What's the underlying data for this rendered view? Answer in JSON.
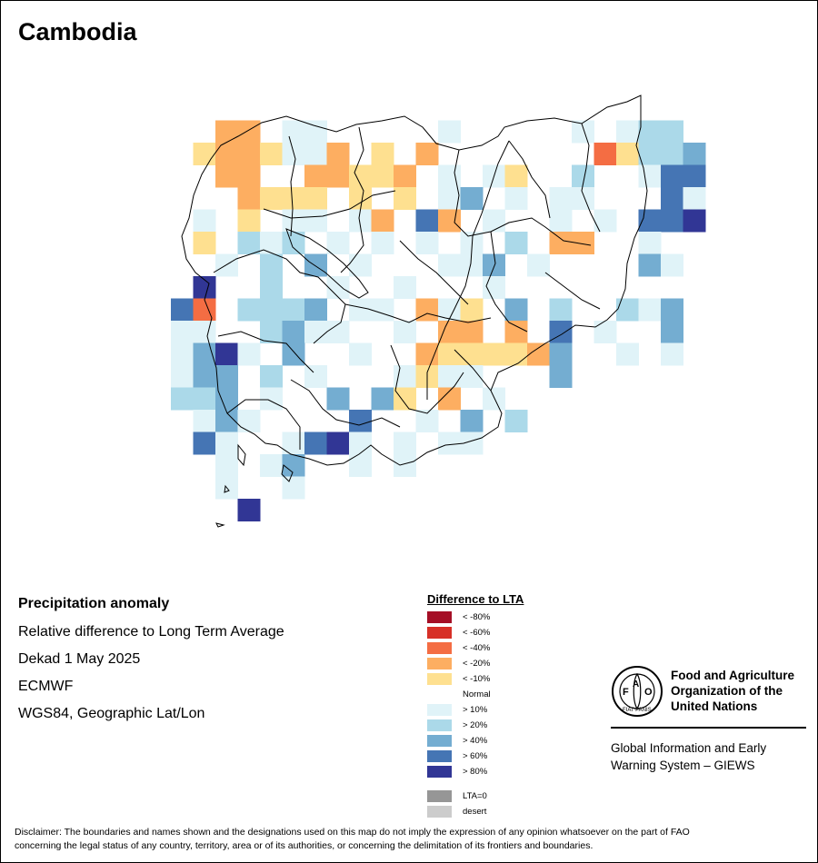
{
  "title": "Cambodia",
  "info": {
    "title": "Precipitation anomaly",
    "line1": "Relative difference to Long Term Average",
    "line2": "Dekad 1 May 2025",
    "line3": "ECMWF",
    "line4": "WGS84, Geographic Lat/Lon"
  },
  "legend": {
    "title": "Difference to LTA",
    "items": [
      {
        "label": "< -80%",
        "color": "#a50f26"
      },
      {
        "label": "< -60%",
        "color": "#d73027"
      },
      {
        "label": "< -40%",
        "color": "#f46d43"
      },
      {
        "label": "< -20%",
        "color": "#fdae61"
      },
      {
        "label": "< -10%",
        "color": "#fee090"
      },
      {
        "label": "Normal",
        "color": "#ffffff"
      },
      {
        "label": "> 10%",
        "color": "#e0f3f8"
      },
      {
        "label": "> 20%",
        "color": "#abd9e9"
      },
      {
        "label": "> 40%",
        "color": "#74add1"
      },
      {
        "label": "> 60%",
        "color": "#4575b4"
      },
      {
        "label": "> 80%",
        "color": "#313695"
      }
    ],
    "extra": [
      {
        "label": "LTA=0",
        "color": "#969696"
      },
      {
        "label": "desert",
        "color": "#cccccc"
      }
    ]
  },
  "fao": {
    "name_line1": "Food and Agriculture",
    "name_line2": "Organization of the",
    "name_line3": "United Nations",
    "giews_line1": "Global Information and Early",
    "giews_line2": "Warning System – GIEWS",
    "logo_letters": "FAO",
    "logo_motto": "FIAT PANIS"
  },
  "disclaimer_line1": "Disclaimer: The boundaries and names shown and the designations used on this map do not imply the expression of any opinion whatsoever on the part of FAO",
  "disclaimer_line2": "concerning the legal status of any country, territory, area or of its authorities, or concerning the delimitation of its frontiers and boundaries."
}
